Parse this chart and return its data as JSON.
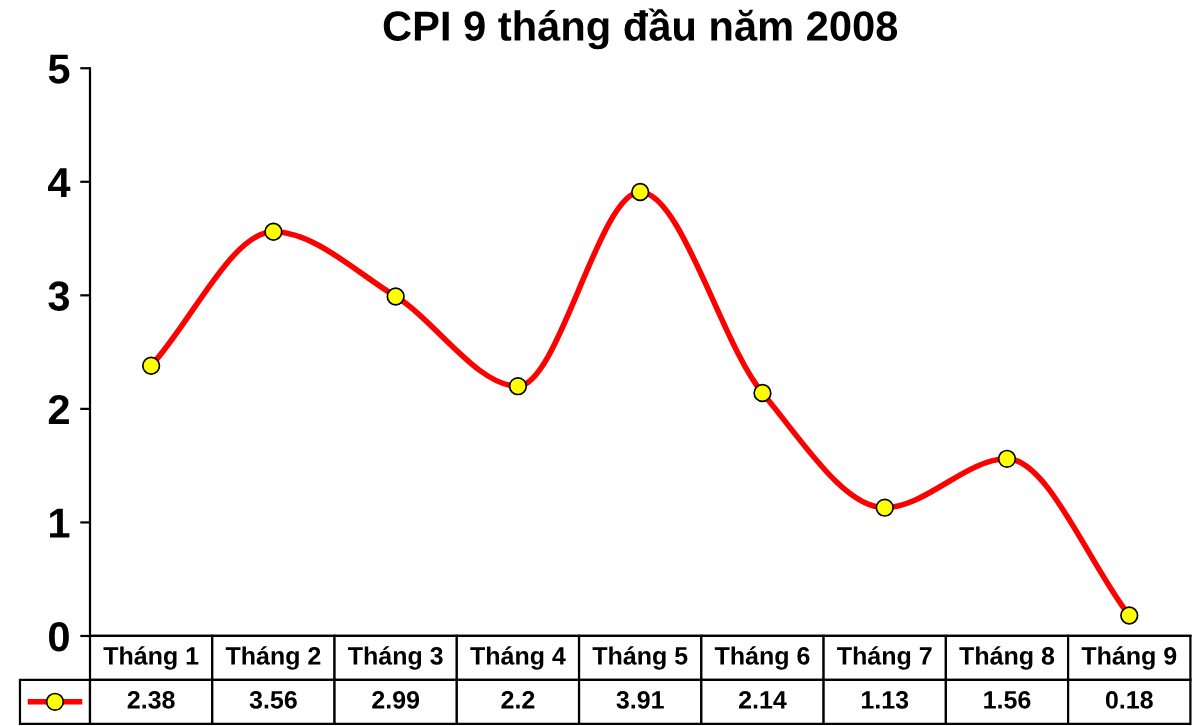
{
  "chart_data": {
    "type": "line",
    "title": "CPI 9 tháng đầu năm 2008",
    "categories": [
      "Tháng 1",
      "Tháng 2",
      "Tháng 3",
      "Tháng 4",
      "Tháng 5",
      "Tháng 6",
      "Tháng 7",
      "Tháng 8",
      "Tháng 9"
    ],
    "series": [
      {
        "color": "#ff0000",
        "values": [
          2.38,
          3.56,
          2.99,
          2.2,
          3.91,
          2.14,
          1.13,
          1.56,
          0.18
        ]
      }
    ],
    "ylim": [
      0,
      5
    ],
    "yticks": [
      0,
      1,
      2,
      3,
      4,
      5
    ],
    "grid": false,
    "marker": "circle",
    "line_style": "solid",
    "data_labels": true
  }
}
